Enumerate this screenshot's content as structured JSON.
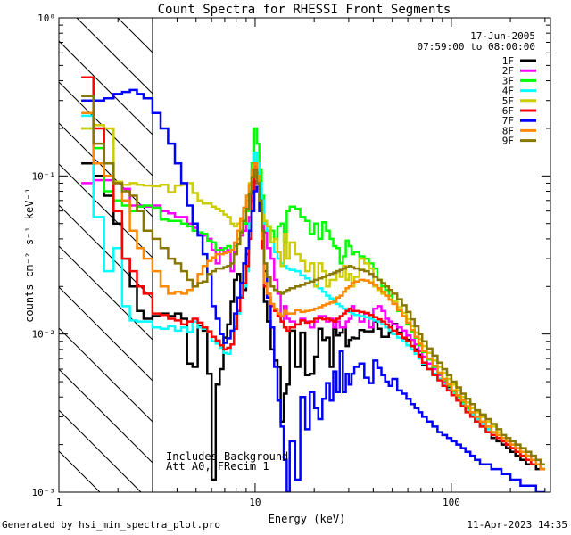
{
  "chart_data": {
    "type": "line",
    "title": "Count Spectra for RHESSI Front Segments",
    "xlabel": "Energy (keV)",
    "ylabel": "counts cm⁻² s⁻¹ keV⁻¹",
    "xscale": "log",
    "yscale": "log",
    "xlim": [
      1.0,
      320.0
    ],
    "ylim": [
      0.001,
      1.0
    ],
    "x_ticks": [
      {
        "value": 1,
        "label": "1"
      },
      {
        "value": 10,
        "label": "10"
      },
      {
        "value": 100,
        "label": "100"
      }
    ],
    "y_ticks": [
      {
        "value": 1.0,
        "label": "10⁰"
      },
      {
        "value": 0.1,
        "label": "10⁻¹"
      },
      {
        "value": 0.01,
        "label": "10⁻²"
      },
      {
        "value": 0.001,
        "label": "10⁻³"
      }
    ],
    "legend_location": "top-right",
    "date": "17-Jun-2005",
    "time_range": "07:59:00 to 08:00:00",
    "annotations": [
      "Includes Background",
      "Att A0, FRecim 1"
    ],
    "hatched_region_xmax": 3.0,
    "energy_bin_edges": [
      1.3,
      1.5,
      1.7,
      1.9,
      2.1,
      2.3,
      2.5,
      2.7,
      3.0,
      3.3,
      3.6,
      3.9,
      4.2,
      4.5,
      4.8,
      5.1,
      5.4,
      5.7,
      6.0,
      6.3,
      6.6,
      6.9,
      7.2,
      7.5,
      7.8,
      8.1,
      8.4,
      8.7,
      9.0,
      9.3,
      9.6,
      9.9,
      10.2,
      10.5,
      10.8,
      11.1,
      11.5,
      12.0,
      12.5,
      13.0,
      13.5,
      14.0,
      14.5,
      15.0,
      16.0,
      17.0,
      18.0,
      19.0,
      20.0,
      21.0,
      22.0,
      23.0,
      24.0,
      25.0,
      26.0,
      27.0,
      28.0,
      29.0,
      30.0,
      31.0,
      32.0,
      34.0,
      36.0,
      38.0,
      40.0,
      42.0,
      44.0,
      46.0,
      48.0,
      50.0,
      53.0,
      56.0,
      59.0,
      62.0,
      65.0,
      68.0,
      71.0,
      75.0,
      80.0,
      85.0,
      90.0,
      95.0,
      100.0,
      106.0,
      112.0,
      118.0,
      125.0,
      132.0,
      140.0,
      150.0,
      160.0,
      170.0,
      180.0,
      190.0,
      200.0,
      212.0,
      225.0,
      240.0,
      255.0,
      270.0,
      285.0,
      300.0
    ],
    "series": [
      {
        "name": "1F",
        "color": "#000000",
        "values": [
          0.12,
          0.1,
          0.075,
          0.05,
          0.03,
          0.02,
          0.014,
          0.0125,
          0.013,
          0.0135,
          0.013,
          0.0135,
          0.0125,
          0.0065,
          0.0062,
          0.0112,
          0.0105,
          0.0056,
          0.0012,
          0.0048,
          0.006,
          0.0095,
          0.0115,
          0.016,
          0.022,
          0.024,
          0.021,
          0.019,
          0.032,
          0.05,
          0.078,
          0.092,
          0.105,
          0.082,
          0.06,
          0.016,
          0.012,
          0.008,
          0.0068,
          0.0062,
          0.0028,
          0.0042,
          0.0048,
          0.0105,
          0.0062,
          0.0102,
          0.0055,
          0.0056,
          0.0072,
          0.0108,
          0.0092,
          0.0095,
          0.0062,
          0.0108,
          0.0098,
          0.0102,
          0.011,
          0.0084,
          0.0092,
          0.0095,
          0.0094,
          0.0106,
          0.0104,
          0.0104,
          0.012,
          0.0108,
          0.0096,
          0.0096,
          0.0102,
          0.0116,
          0.0102,
          0.0094,
          0.0092,
          0.0084,
          0.008,
          0.0074,
          0.0064,
          0.006,
          0.0056,
          0.0052,
          0.005,
          0.0046,
          0.0042,
          0.004,
          0.0037,
          0.0033,
          0.0031,
          0.0028,
          0.0026,
          0.0024,
          0.0022,
          0.0021,
          0.002,
          0.0019,
          0.0018,
          0.0017,
          0.0016,
          0.0015,
          0.0015,
          0.0014,
          0.0014
        ]
      },
      {
        "name": "2F",
        "color": "#ff00ff",
        "values": [
          0.09,
          0.094,
          0.094,
          0.09,
          0.083,
          0.065,
          0.065,
          0.064,
          0.065,
          0.06,
          0.058,
          0.055,
          0.055,
          0.05,
          0.047,
          0.043,
          0.042,
          0.04,
          0.034,
          0.028,
          0.035,
          0.033,
          0.034,
          0.025,
          0.033,
          0.04,
          0.042,
          0.045,
          0.05,
          0.055,
          0.07,
          0.09,
          0.11,
          0.09,
          0.06,
          0.044,
          0.035,
          0.03,
          0.022,
          0.018,
          0.012,
          0.015,
          0.0125,
          0.012,
          0.0115,
          0.0125,
          0.012,
          0.011,
          0.012,
          0.013,
          0.013,
          0.012,
          0.0125,
          0.011,
          0.012,
          0.011,
          0.011,
          0.012,
          0.0125,
          0.015,
          0.014,
          0.012,
          0.0135,
          0.011,
          0.0145,
          0.015,
          0.014,
          0.0125,
          0.012,
          0.0115,
          0.011,
          0.0105,
          0.0098,
          0.0092,
          0.0086,
          0.0078,
          0.0072,
          0.0065,
          0.006,
          0.0055,
          0.005,
          0.0047,
          0.0043,
          0.004,
          0.0036,
          0.0033,
          0.0031,
          0.0029,
          0.0027,
          0.0025,
          0.0023,
          0.0022,
          0.0021,
          0.002,
          0.0019,
          0.0018,
          0.0017,
          0.0016,
          0.0015,
          0.0015,
          0.0014
        ]
      },
      {
        "name": "3F",
        "color": "#00ff00",
        "values": [
          0.2,
          0.15,
          0.08,
          0.07,
          0.065,
          0.06,
          0.064,
          0.065,
          0.063,
          0.053,
          0.052,
          0.052,
          0.05,
          0.048,
          0.045,
          0.044,
          0.043,
          0.039,
          0.038,
          0.034,
          0.034,
          0.035,
          0.036,
          0.034,
          0.036,
          0.04,
          0.045,
          0.05,
          0.06,
          0.08,
          0.12,
          0.2,
          0.16,
          0.11,
          0.075,
          0.05,
          0.048,
          0.045,
          0.04,
          0.048,
          0.05,
          0.038,
          0.06,
          0.064,
          0.062,
          0.055,
          0.052,
          0.043,
          0.05,
          0.04,
          0.051,
          0.045,
          0.04,
          0.036,
          0.035,
          0.028,
          0.031,
          0.039,
          0.036,
          0.032,
          0.033,
          0.031,
          0.03,
          0.028,
          0.026,
          0.022,
          0.02,
          0.019,
          0.0175,
          0.016,
          0.014,
          0.013,
          0.0115,
          0.0104,
          0.0095,
          0.0085,
          0.0077,
          0.0069,
          0.0062,
          0.0056,
          0.0051,
          0.0047,
          0.0043,
          0.004,
          0.0037,
          0.0034,
          0.0032,
          0.003,
          0.0028,
          0.0026,
          0.0024,
          0.0023,
          0.0021,
          0.002,
          0.0019,
          0.0018,
          0.0017,
          0.0016,
          0.0015,
          0.0015,
          0.0014
        ]
      },
      {
        "name": "4F",
        "color": "#00ffff",
        "values": [
          0.24,
          0.055,
          0.025,
          0.035,
          0.015,
          0.0122,
          0.012,
          0.012,
          0.011,
          0.0108,
          0.0112,
          0.0105,
          0.011,
          0.0103,
          0.012,
          0.011,
          0.0108,
          0.0103,
          0.009,
          0.0087,
          0.0082,
          0.0076,
          0.0075,
          0.0086,
          0.0112,
          0.0135,
          0.0175,
          0.02,
          0.025,
          0.05,
          0.11,
          0.14,
          0.12,
          0.09,
          0.07,
          0.05,
          0.045,
          0.038,
          0.033,
          0.03,
          0.028,
          0.027,
          0.026,
          0.0255,
          0.025,
          0.0235,
          0.0225,
          0.0215,
          0.0205,
          0.0195,
          0.0185,
          0.0175,
          0.0168,
          0.016,
          0.0155,
          0.015,
          0.0145,
          0.0142,
          0.0138,
          0.0135,
          0.0132,
          0.013,
          0.0128,
          0.0125,
          0.0122,
          0.012,
          0.0115,
          0.011,
          0.0105,
          0.01,
          0.0095,
          0.009,
          0.0085,
          0.008,
          0.0075,
          0.007,
          0.0065,
          0.006,
          0.0056,
          0.0052,
          0.0048,
          0.0045,
          0.0042,
          0.0039,
          0.0036,
          0.0033,
          0.0031,
          0.0029,
          0.0027,
          0.0025,
          0.0023,
          0.0022,
          0.0021,
          0.002,
          0.0019,
          0.0018,
          0.0017,
          0.0016,
          0.0015,
          0.0015,
          0.0014
        ]
      },
      {
        "name": "5F",
        "color": "#cccc00",
        "values": [
          0.2,
          0.21,
          0.2,
          0.092,
          0.088,
          0.09,
          0.088,
          0.087,
          0.086,
          0.088,
          0.079,
          0.087,
          0.088,
          0.09,
          0.078,
          0.07,
          0.067,
          0.067,
          0.064,
          0.062,
          0.06,
          0.057,
          0.055,
          0.05,
          0.048,
          0.05,
          0.052,
          0.06,
          0.07,
          0.09,
          0.1,
          0.1,
          0.09,
          0.07,
          0.057,
          0.052,
          0.048,
          0.038,
          0.04,
          0.033,
          0.027,
          0.043,
          0.03,
          0.038,
          0.032,
          0.029,
          0.025,
          0.028,
          0.02,
          0.028,
          0.025,
          0.02,
          0.022,
          0.022,
          0.025,
          0.023,
          0.027,
          0.022,
          0.024,
          0.02,
          0.023,
          0.03,
          0.028,
          0.026,
          0.02,
          0.019,
          0.018,
          0.0175,
          0.0165,
          0.016,
          0.0148,
          0.0136,
          0.0124,
          0.0112,
          0.0102,
          0.0093,
          0.0084,
          0.0076,
          0.0068,
          0.0062,
          0.0057,
          0.0052,
          0.0048,
          0.0044,
          0.004,
          0.0037,
          0.0034,
          0.0032,
          0.003,
          0.0028,
          0.0026,
          0.0024,
          0.0022,
          0.0021,
          0.002,
          0.0019,
          0.0018,
          0.0017,
          0.0016,
          0.0015,
          0.0014
        ]
      },
      {
        "name": "6F",
        "color": "#ff0000",
        "values": [
          0.42,
          0.2,
          0.1,
          0.06,
          0.03,
          0.025,
          0.02,
          0.018,
          0.0135,
          0.0132,
          0.0125,
          0.0122,
          0.0115,
          0.012,
          0.0125,
          0.0118,
          0.011,
          0.0104,
          0.0096,
          0.0091,
          0.0085,
          0.008,
          0.0082,
          0.0086,
          0.0108,
          0.014,
          0.017,
          0.021,
          0.027,
          0.04,
          0.08,
          0.115,
          0.09,
          0.06,
          0.035,
          0.02,
          0.017,
          0.015,
          0.014,
          0.013,
          0.012,
          0.011,
          0.0105,
          0.011,
          0.0115,
          0.0122,
          0.0118,
          0.012,
          0.0125,
          0.0126,
          0.0124,
          0.0125,
          0.0122,
          0.012,
          0.0125,
          0.013,
          0.0135,
          0.014,
          0.0145,
          0.014,
          0.014,
          0.0138,
          0.0136,
          0.0132,
          0.0128,
          0.0124,
          0.012,
          0.0115,
          0.011,
          0.0105,
          0.01,
          0.0095,
          0.009,
          0.0084,
          0.0078,
          0.0072,
          0.0066,
          0.006,
          0.0055,
          0.0051,
          0.0047,
          0.0044,
          0.0041,
          0.0038,
          0.0035,
          0.0032,
          0.003,
          0.0028,
          0.0026,
          0.0024,
          0.0023,
          0.0022,
          0.0021,
          0.002,
          0.0019,
          0.0018,
          0.0017,
          0.0016,
          0.0015,
          0.0015,
          0.0014
        ]
      },
      {
        "name": "7F",
        "color": "#0000ff",
        "values": [
          0.3,
          0.3,
          0.31,
          0.33,
          0.34,
          0.35,
          0.33,
          0.31,
          0.25,
          0.2,
          0.16,
          0.12,
          0.09,
          0.065,
          0.05,
          0.042,
          0.032,
          0.024,
          0.015,
          0.0125,
          0.01,
          0.0088,
          0.0094,
          0.0105,
          0.0135,
          0.017,
          0.021,
          0.028,
          0.035,
          0.045,
          0.06,
          0.08,
          0.085,
          0.06,
          0.045,
          0.025,
          0.017,
          0.011,
          0.0062,
          0.0038,
          0.0026,
          0.0016,
          0.001,
          0.0021,
          0.0012,
          0.004,
          0.0025,
          0.0043,
          0.0034,
          0.0029,
          0.0039,
          0.0049,
          0.0038,
          0.0058,
          0.0043,
          0.0078,
          0.0043,
          0.0056,
          0.0048,
          0.0056,
          0.0062,
          0.0065,
          0.0053,
          0.0049,
          0.0068,
          0.0061,
          0.0055,
          0.005,
          0.0047,
          0.0052,
          0.0044,
          0.0042,
          0.0039,
          0.0036,
          0.0034,
          0.0032,
          0.003,
          0.0028,
          0.0026,
          0.0024,
          0.0023,
          0.0022,
          0.0021,
          0.002,
          0.0019,
          0.0018,
          0.0017,
          0.0016,
          0.0015,
          0.0015,
          0.0014,
          0.0014,
          0.0013,
          0.0013,
          0.0012,
          0.0012,
          0.0011,
          0.0011,
          0.0011,
          0.001,
          0.001
        ]
      },
      {
        "name": "8F",
        "color": "#ff8800",
        "values": [
          0.25,
          0.12,
          0.1,
          0.09,
          0.07,
          0.045,
          0.035,
          0.03,
          0.025,
          0.02,
          0.018,
          0.0185,
          0.018,
          0.019,
          0.02,
          0.024,
          0.027,
          0.029,
          0.0305,
          0.032,
          0.032,
          0.0325,
          0.033,
          0.034,
          0.038,
          0.045,
          0.054,
          0.063,
          0.075,
          0.088,
          0.11,
          0.12,
          0.1,
          0.07,
          0.04,
          0.021,
          0.018,
          0.0155,
          0.0145,
          0.0135,
          0.013,
          0.014,
          0.0135,
          0.0135,
          0.0142,
          0.0138,
          0.014,
          0.0142,
          0.0145,
          0.0148,
          0.0152,
          0.0155,
          0.0158,
          0.016,
          0.017,
          0.0175,
          0.0185,
          0.0195,
          0.02,
          0.021,
          0.0215,
          0.022,
          0.0218,
          0.0212,
          0.0205,
          0.0195,
          0.0185,
          0.0175,
          0.0165,
          0.0155,
          0.0142,
          0.013,
          0.0118,
          0.0106,
          0.0096,
          0.0087,
          0.0078,
          0.007,
          0.0063,
          0.0057,
          0.0052,
          0.0048,
          0.0044,
          0.0041,
          0.0038,
          0.0035,
          0.0032,
          0.003,
          0.0028,
          0.0026,
          0.0024,
          0.0023,
          0.0022,
          0.0021,
          0.002,
          0.0019,
          0.0018,
          0.0017,
          0.0016,
          0.0015,
          0.0014
        ]
      },
      {
        "name": "9F",
        "color": "#887700",
        "values": [
          0.32,
          0.16,
          0.12,
          0.09,
          0.08,
          0.075,
          0.06,
          0.045,
          0.04,
          0.035,
          0.03,
          0.028,
          0.025,
          0.022,
          0.02,
          0.021,
          0.0215,
          0.024,
          0.025,
          0.026,
          0.026,
          0.0265,
          0.027,
          0.028,
          0.032,
          0.037,
          0.044,
          0.052,
          0.062,
          0.077,
          0.098,
          0.11,
          0.09,
          0.07,
          0.045,
          0.028,
          0.023,
          0.02,
          0.019,
          0.0185,
          0.018,
          0.0185,
          0.019,
          0.0195,
          0.02,
          0.0205,
          0.021,
          0.0215,
          0.022,
          0.0225,
          0.023,
          0.0235,
          0.024,
          0.0245,
          0.025,
          0.0255,
          0.026,
          0.0265,
          0.027,
          0.0265,
          0.026,
          0.0255,
          0.025,
          0.024,
          0.023,
          0.022,
          0.021,
          0.02,
          0.019,
          0.018,
          0.0166,
          0.0152,
          0.0138,
          0.0124,
          0.0112,
          0.01,
          0.009,
          0.0081,
          0.0073,
          0.0066,
          0.006,
          0.0055,
          0.005,
          0.0046,
          0.0042,
          0.0039,
          0.0036,
          0.0033,
          0.0031,
          0.0029,
          0.0027,
          0.0025,
          0.0023,
          0.0022,
          0.0021,
          0.002,
          0.0019,
          0.0018,
          0.0017,
          0.0016,
          0.0015
        ]
      }
    ]
  },
  "footer": {
    "left": "Generated by hsi_min_spectra_plot.pro",
    "right": "11-Apr-2023 14:35"
  }
}
